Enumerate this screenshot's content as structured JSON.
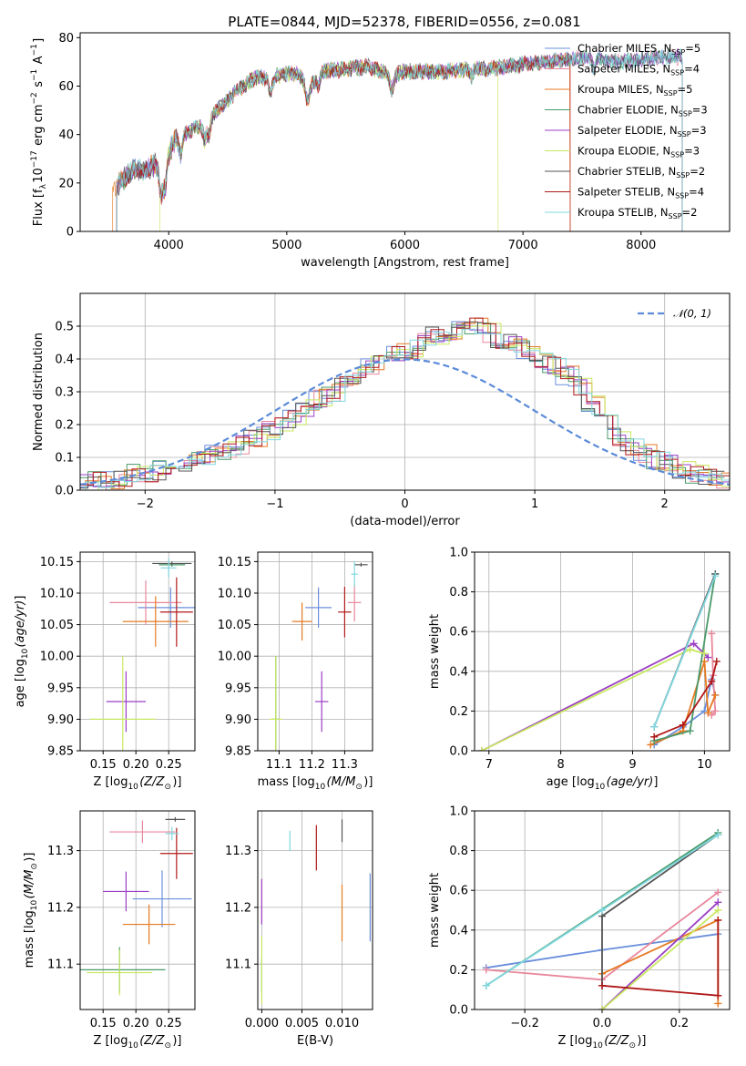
{
  "title": "PLATE=0844, MJD=52378, FIBERID=0556, z=0.081",
  "models": [
    {
      "name": "Chabrier MILES",
      "nssp": "5",
      "color": "#6a8fdc"
    },
    {
      "name": "Salpeter MILES",
      "nssp": "4",
      "color": "#e8879c"
    },
    {
      "name": "Kroupa MILES",
      "nssp": "5",
      "color": "#e67a22"
    },
    {
      "name": "Chabrier ELODIE",
      "nssp": "3",
      "color": "#4a9a6a"
    },
    {
      "name": "Salpeter ELODIE",
      "nssp": "3",
      "color": "#9a3fc4"
    },
    {
      "name": "Kroupa ELODIE",
      "nssp": "3",
      "color": "#c8e860"
    },
    {
      "name": "Chabrier STELIB",
      "nssp": "2",
      "color": "#555555"
    },
    {
      "name": "Salpeter STELIB",
      "nssp": "4",
      "color": "#b01818"
    },
    {
      "name": "Kroupa STELIB",
      "nssp": "2",
      "color": "#80d8e0"
    }
  ],
  "legend_template": {
    "nssp_prefix": "N",
    "nssp_sub": "SSP",
    "eq": "="
  },
  "chart_data": [
    {
      "id": "spectrum",
      "type": "line",
      "xlabel": "wavelength [Angstrom, rest frame]",
      "ylabel_parts": {
        "pre": "Flux [f",
        "sub": "λ",
        "mid1": "10",
        "sup1": "−17",
        "mid2": " erg cm",
        "sup2": "−2",
        "mid3": " s",
        "sup3": "−1",
        "mid4": " A",
        "sup4": "−1",
        "post": "]"
      },
      "xlim": [
        3250,
        8750
      ],
      "ylim": [
        0,
        82
      ],
      "xticks": [
        4000,
        5000,
        6000,
        7000,
        8000
      ],
      "yticks": [
        0,
        20,
        40,
        60,
        80
      ],
      "grid": false,
      "legend_position": "right",
      "continuum_nodes": [
        [
          3560,
          19
        ],
        [
          3650,
          23
        ],
        [
          3720,
          26
        ],
        [
          3800,
          25
        ],
        [
          3900,
          28
        ],
        [
          3960,
          27
        ],
        [
          4050,
          38
        ],
        [
          4200,
          42
        ],
        [
          4300,
          45
        ],
        [
          4450,
          52
        ],
        [
          4600,
          59
        ],
        [
          4750,
          64
        ],
        [
          4850,
          63
        ],
        [
          5000,
          65
        ],
        [
          5100,
          65
        ],
        [
          5180,
          59
        ],
        [
          5300,
          66
        ],
        [
          5500,
          67
        ],
        [
          5700,
          68
        ],
        [
          5890,
          64
        ],
        [
          6000,
          66
        ],
        [
          6300,
          66
        ],
        [
          6563,
          67
        ],
        [
          6700,
          67
        ],
        [
          7000,
          69
        ],
        [
          7200,
          70
        ],
        [
          7400,
          71
        ],
        [
          7600,
          72
        ],
        [
          7800,
          70
        ],
        [
          8000,
          71
        ],
        [
          8200,
          72
        ],
        [
          8300,
          72
        ],
        [
          8350,
          72
        ]
      ],
      "absorption_lines": [
        [
          3933,
          12
        ],
        [
          3968,
          10
        ],
        [
          4101,
          8
        ],
        [
          4304,
          7
        ],
        [
          4340,
          7
        ],
        [
          4861,
          6
        ],
        [
          5175,
          6
        ],
        [
          5270,
          4
        ],
        [
          5890,
          6
        ],
        [
          6563,
          3
        ],
        [
          7600,
          5
        ]
      ],
      "model_ranges": [
        [
          3560,
          8350
        ],
        [
          3560,
          8350
        ],
        [
          3525,
          7400
        ],
        [
          3560,
          8350
        ],
        [
          3560,
          8350
        ],
        [
          3925,
          6790
        ],
        [
          3560,
          8350
        ],
        [
          3560,
          7400
        ],
        [
          3560,
          8350
        ]
      ]
    },
    {
      "id": "residual_histogram",
      "type": "step",
      "xlabel": "(data-model)/error",
      "ylabel": "Normed distribution",
      "xlim": [
        -2.5,
        2.5
      ],
      "ylim": [
        0,
        0.6
      ],
      "xticks": [
        -2,
        -1,
        0,
        1,
        2
      ],
      "xticklabels": [
        "−2",
        "−1",
        "0",
        "1",
        "2"
      ],
      "yticks": [
        0.0,
        0.1,
        0.2,
        0.3,
        0.4,
        0.5
      ],
      "yticklabels": [
        "0.0",
        "0.1",
        "0.2",
        "0.3",
        "0.4",
        "0.5"
      ],
      "grid": true,
      "reference_label": "𝒩(0, 1)",
      "reference_color": "#5b8bd9",
      "legend_position": "upper right",
      "bin_width": 0.1,
      "bin_start": -2.5,
      "base_profile": [
        0.02,
        0.03,
        0.03,
        0.04,
        0.05,
        0.05,
        0.06,
        0.07,
        0.08,
        0.09,
        0.11,
        0.12,
        0.14,
        0.16,
        0.18,
        0.2,
        0.22,
        0.25,
        0.28,
        0.3,
        0.33,
        0.35,
        0.38,
        0.4,
        0.42,
        0.43,
        0.45,
        0.47,
        0.48,
        0.5,
        0.5,
        0.48,
        0.46,
        0.45,
        0.43,
        0.4,
        0.38,
        0.35,
        0.32,
        0.26,
        0.2,
        0.16,
        0.13,
        0.11,
        0.09,
        0.08,
        0.06,
        0.05,
        0.04,
        0.03
      ]
    },
    {
      "id": "age_vs_Z",
      "type": "errorbar",
      "xlabel_parts": {
        "pre": "Z [log",
        "sub": "10",
        "it": "(Z/Z",
        "sub2": "⊙",
        "post": ")]"
      },
      "ylabel_parts": {
        "pre": "age  [log",
        "sub": "10",
        "it": "(age/yr)",
        "post": "]"
      },
      "xlim": [
        0.115,
        0.29
      ],
      "ylim": [
        9.85,
        10.165
      ],
      "xticks": [
        0.15,
        0.2,
        0.25
      ],
      "xticklabels": [
        "0.15",
        "0.20",
        "0.25"
      ],
      "yticks": [
        9.85,
        9.9,
        9.95,
        10.0,
        10.05,
        10.1,
        10.15
      ],
      "yticklabels": [
        "9.85",
        "9.90",
        "9.95",
        "10.00",
        "10.05",
        "10.10",
        "10.15"
      ],
      "grid": true,
      "points": [
        {
          "x": 0.253,
          "xerr": 0.05,
          "y": 10.077,
          "yerr": 0.032
        },
        {
          "x": 0.215,
          "xerr": 0.055,
          "y": 10.085,
          "yerr": 0.035
        },
        {
          "x": 0.23,
          "xerr": 0.05,
          "y": 10.055,
          "yerr": 0.04
        },
        {
          "x": 0.255,
          "xerr": 0.02,
          "y": 10.145,
          "yerr": 0.003
        },
        {
          "x": 0.185,
          "xerr": 0.03,
          "y": 9.928,
          "yerr": 0.048
        },
        {
          "x": 0.18,
          "xerr": 0.05,
          "y": 9.9,
          "yerr": 0.1
        },
        {
          "x": 0.255,
          "xerr": 0.03,
          "y": 10.147,
          "yerr": 0.003
        },
        {
          "x": 0.262,
          "xerr": 0.025,
          "y": 10.07,
          "yerr": 0.055
        },
        {
          "x": 0.25,
          "xerr": 0.012,
          "y": 10.14,
          "yerr": 0.015
        }
      ]
    },
    {
      "id": "age_vs_mass",
      "type": "errorbar",
      "xlabel_parts": {
        "pre": "mass [log",
        "sub": "10",
        "it": "(M/M",
        "sub2": "⊙",
        "post": ")]"
      },
      "xlim": [
        11.035,
        11.385
      ],
      "ylim": [
        9.85,
        10.165
      ],
      "xticks": [
        11.1,
        11.2,
        11.3
      ],
      "xticklabels": [
        "11.1",
        "11.2",
        "11.3"
      ],
      "yticks": [
        9.85,
        9.9,
        9.95,
        10.0,
        10.05,
        10.1,
        10.15
      ],
      "yticklabels": [
        "9.85",
        "9.90",
        "9.95",
        "10.00",
        "10.05",
        "10.10",
        "10.15"
      ],
      "grid": true,
      "points": [
        {
          "x": 11.22,
          "xerr": 0.04,
          "y": 10.077,
          "yerr": 0.032
        },
        {
          "x": 11.33,
          "xerr": 0.02,
          "y": 10.085,
          "yerr": 0.03
        },
        {
          "x": 11.17,
          "xerr": 0.03,
          "y": 10.055,
          "yerr": 0.03
        },
        {
          "x": 11.09,
          "xerr": 0.01,
          "y": 9.9,
          "yerr": 0.1
        },
        {
          "x": 11.23,
          "xerr": 0.02,
          "y": 9.928,
          "yerr": 0.048
        },
        {
          "x": 11.09,
          "xerr": 0.02,
          "y": 9.9,
          "yerr": 0.1
        },
        {
          "x": 11.35,
          "xerr": 0.02,
          "y": 10.145,
          "yerr": 0.003
        },
        {
          "x": 11.3,
          "xerr": 0.02,
          "y": 10.07,
          "yerr": 0.04
        },
        {
          "x": 11.33,
          "xerr": 0.01,
          "y": 10.13,
          "yerr": 0.02
        }
      ]
    },
    {
      "id": "weight_vs_age",
      "type": "line",
      "xlabel_parts": {
        "pre": "age  [log",
        "sub": "10",
        "it": "(age/yr)",
        "post": "]"
      },
      "ylabel": "mass weight",
      "xlim": [
        6.8,
        10.35
      ],
      "ylim": [
        0.0,
        1.0
      ],
      "xticks": [
        7,
        8,
        9,
        10
      ],
      "xticklabels": [
        "7",
        "8",
        "9",
        "10"
      ],
      "yticks": [
        0.0,
        0.2,
        0.4,
        0.6,
        0.8,
        1.0
      ],
      "yticklabels": [
        "0.0",
        "0.2",
        "0.4",
        "0.6",
        "0.8",
        "1.0"
      ],
      "grid": true,
      "series": [
        {
          "x": [
            9.3,
            9.7,
            10.0,
            10.1,
            10.15
          ],
          "y": [
            0.03,
            0.12,
            0.2,
            0.36,
            0.28
          ]
        },
        {
          "x": [
            10.1,
            10.12,
            10.15,
            10.1
          ],
          "y": [
            0.59,
            0.38,
            0.2,
            0.18
          ]
        },
        {
          "x": [
            9.25,
            9.7,
            10.0,
            10.05,
            10.15
          ],
          "y": [
            0.03,
            0.1,
            0.45,
            0.19,
            0.28
          ]
        },
        {
          "x": [
            9.3,
            9.8,
            10.15
          ],
          "y": [
            0.05,
            0.1,
            0.89
          ]
        },
        {
          "x": [
            6.9,
            9.85,
            10.05
          ],
          "y": [
            0.0,
            0.54,
            0.47
          ]
        },
        {
          "x": [
            6.9,
            9.8,
            10.0
          ],
          "y": [
            0.0,
            0.51,
            0.49
          ]
        },
        {
          "x": [
            9.3,
            10.15
          ],
          "y": [
            0.12,
            0.89
          ]
        },
        {
          "x": [
            9.3,
            9.7,
            10.1,
            10.17
          ],
          "y": [
            0.07,
            0.13,
            0.35,
            0.45
          ]
        },
        {
          "x": [
            9.3,
            10.15
          ],
          "y": [
            0.12,
            0.88
          ]
        }
      ]
    },
    {
      "id": "mass_vs_Z",
      "type": "errorbar",
      "xlabel_parts": {
        "pre": "Z [log",
        "sub": "10",
        "it": "(Z/Z",
        "sub2": "⊙",
        "post": ")]"
      },
      "ylabel_parts": {
        "pre": "mass [log",
        "sub": "10",
        "it": "(M/M",
        "sub2": "⊙",
        "post": ")]"
      },
      "xlim": [
        0.115,
        0.29
      ],
      "ylim": [
        11.02,
        11.37
      ],
      "xticks": [
        0.15,
        0.2,
        0.25
      ],
      "xticklabels": [
        "0.15",
        "0.20",
        "0.25"
      ],
      "yticks": [
        11.1,
        11.2,
        11.3
      ],
      "yticklabels": [
        "11.1",
        "11.2",
        "11.3"
      ],
      "grid": true,
      "points": [
        {
          "x": 0.24,
          "xerr": 0.045,
          "y": 11.215,
          "yerr": 0.05
        },
        {
          "x": 0.21,
          "xerr": 0.05,
          "y": 11.333,
          "yerr": 0.02
        },
        {
          "x": 0.22,
          "xerr": 0.04,
          "y": 11.17,
          "yerr": 0.035
        },
        {
          "x": 0.175,
          "xerr": 0.07,
          "y": 11.09,
          "yerr": 0.04
        },
        {
          "x": 0.185,
          "xerr": 0.035,
          "y": 11.228,
          "yerr": 0.035
        },
        {
          "x": 0.175,
          "xerr": 0.05,
          "y": 11.085,
          "yerr": 0.04
        },
        {
          "x": 0.26,
          "xerr": 0.015,
          "y": 11.355,
          "yerr": 0.004
        },
        {
          "x": 0.262,
          "xerr": 0.025,
          "y": 11.295,
          "yerr": 0.045
        },
        {
          "x": 0.255,
          "xerr": 0.01,
          "y": 11.33,
          "yerr": 0.012
        }
      ]
    },
    {
      "id": "mass_vs_EBV",
      "type": "errorbar",
      "xlabel": "E(B-V)",
      "xlim": [
        -0.0005,
        0.0138
      ],
      "ylim": [
        11.02,
        11.37
      ],
      "xticks": [
        0.0,
        0.005,
        0.01
      ],
      "xticklabels": [
        "0.000",
        "0.005",
        "0.010"
      ],
      "yticks": [
        11.1,
        11.2,
        11.3
      ],
      "yticklabels": [
        "11.1",
        "11.2",
        "11.3"
      ],
      "grid": true,
      "points": [
        {
          "x": 0.0135,
          "xerr": 0.0,
          "y": 11.2,
          "yerr": 0.06
        },
        {
          "x": 0.0,
          "xerr": 0.0,
          "y": 11.21,
          "yerr": 0.04
        },
        {
          "x": 0.01,
          "xerr": 0.0,
          "y": 11.19,
          "yerr": 0.05
        },
        {
          "x": 0.0,
          "xerr": 0.0,
          "y": 11.08,
          "yerr": 0.03
        },
        {
          "x": 0.0,
          "xerr": 0.0,
          "y": 11.21,
          "yerr": 0.04
        },
        {
          "x": 0.0,
          "xerr": 0.0,
          "y": 11.09,
          "yerr": 0.06
        },
        {
          "x": 0.01,
          "xerr": 0.0,
          "y": 11.335,
          "yerr": 0.02
        },
        {
          "x": 0.0068,
          "xerr": 0.0,
          "y": 11.305,
          "yerr": 0.04
        },
        {
          "x": 0.0035,
          "xerr": 0.0,
          "y": 11.317,
          "yerr": 0.018
        }
      ]
    },
    {
      "id": "weight_vs_Z",
      "type": "line",
      "xlabel_parts": {
        "pre": "Z [log",
        "sub": "10",
        "it": "(Z/Z",
        "sub2": "⊙",
        "post": ")]"
      },
      "ylabel": "mass weight",
      "xlim": [
        -0.33,
        0.33
      ],
      "ylim": [
        0.0,
        1.0
      ],
      "xticks": [
        -0.2,
        0.0,
        0.2
      ],
      "xticklabels": [
        "−0.2",
        "0.0",
        "0.2"
      ],
      "yticks": [
        0.0,
        0.2,
        0.4,
        0.6,
        0.8,
        1.0
      ],
      "yticklabels": [
        "0.0",
        "0.2",
        "0.4",
        "0.6",
        "0.8",
        "1.0"
      ],
      "grid": true,
      "series": [
        {
          "x": [
            -0.3,
            0.0,
            0.3
          ],
          "y": [
            0.21,
            0.3,
            0.38
          ]
        },
        {
          "x": [
            -0.3,
            0.0,
            0.3
          ],
          "y": [
            0.2,
            0.15,
            0.59
          ]
        },
        {
          "x": [
            0.0,
            0.3,
            0.3
          ],
          "y": [
            0.18,
            0.45,
            0.03
          ]
        },
        {
          "x": [
            -0.3,
            0.3
          ],
          "y": [
            0.12,
            0.89
          ]
        },
        {
          "x": [
            0.0,
            0.3
          ],
          "y": [
            0.0,
            0.54
          ]
        },
        {
          "x": [
            0.0,
            0.3
          ],
          "y": [
            0.0,
            0.5
          ]
        },
        {
          "x": [
            0.0,
            0.0,
            0.3
          ],
          "y": [
            0.12,
            0.47,
            0.88
          ]
        },
        {
          "x": [
            0.0,
            0.3,
            0.3
          ],
          "y": [
            0.12,
            0.07,
            0.45
          ]
        },
        {
          "x": [
            -0.3,
            0.0,
            0.3
          ],
          "y": [
            0.12,
            0.5,
            0.88
          ]
        }
      ]
    }
  ]
}
